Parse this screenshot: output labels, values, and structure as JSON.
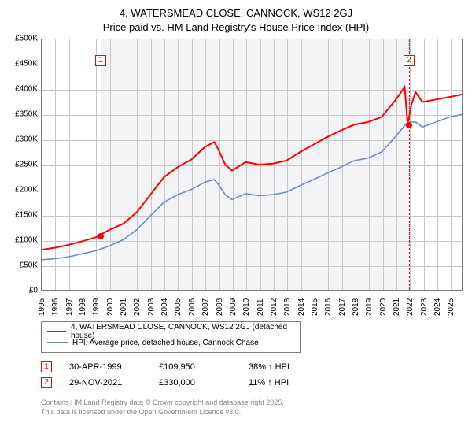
{
  "title_line1": "4, WATERSMEAD CLOSE, CANNOCK, WS12 2GJ",
  "title_line2": "Price paid vs. HM Land Registry's House Price Index (HPI)",
  "chart": {
    "type": "line",
    "background_color": "#ffffff",
    "band_color": "#f3f3f6",
    "border_color": "#7f7f7f",
    "grid_color": "#c8c8c8",
    "x_years": [
      1995,
      1996,
      1997,
      1998,
      1999,
      2000,
      2001,
      2002,
      2003,
      2004,
      2005,
      2006,
      2007,
      2008,
      2009,
      2010,
      2011,
      2012,
      2013,
      2014,
      2015,
      2016,
      2017,
      2018,
      2019,
      2020,
      2021,
      2022,
      2023,
      2024,
      2025
    ],
    "x_domain": [
      1995,
      2025.9
    ],
    "y_ticks": [
      0,
      50000,
      100000,
      150000,
      200000,
      250000,
      300000,
      350000,
      400000,
      450000,
      500000
    ],
    "y_labels": [
      "£0",
      "£50K",
      "£100K",
      "£150K",
      "£200K",
      "£250K",
      "£300K",
      "£350K",
      "£400K",
      "£450K",
      "£500K"
    ],
    "ylim": [
      0,
      500000
    ],
    "band_ranges": [
      [
        1999.33,
        2021.92
      ]
    ],
    "vlines": [
      1999.33,
      2021.92
    ],
    "markers": [
      {
        "n": "1",
        "year": 1999.33,
        "price": 109950,
        "box_y": 20
      },
      {
        "n": "2",
        "year": 2021.92,
        "price": 330000,
        "box_y": 20
      }
    ],
    "series": [
      {
        "name": "series-price-paid",
        "color": "#ff0000",
        "width": 2,
        "label": "4, WATERSMEAD CLOSE, CANNOCK, WS12 2GJ (detached house)",
        "points": [
          [
            1995,
            80000
          ],
          [
            1996,
            84000
          ],
          [
            1997,
            90000
          ],
          [
            1998,
            97000
          ],
          [
            1999,
            105000
          ],
          [
            1999.33,
            109950
          ],
          [
            2000,
            120000
          ],
          [
            2001,
            132000
          ],
          [
            2002,
            155000
          ],
          [
            2003,
            190000
          ],
          [
            2004,
            225000
          ],
          [
            2005,
            245000
          ],
          [
            2006,
            260000
          ],
          [
            2007,
            285000
          ],
          [
            2007.7,
            295000
          ],
          [
            2008,
            280000
          ],
          [
            2008.5,
            250000
          ],
          [
            2009,
            238000
          ],
          [
            2010,
            255000
          ],
          [
            2011,
            250000
          ],
          [
            2012,
            252000
          ],
          [
            2013,
            258000
          ],
          [
            2014,
            275000
          ],
          [
            2015,
            290000
          ],
          [
            2016,
            305000
          ],
          [
            2017,
            318000
          ],
          [
            2018,
            330000
          ],
          [
            2019,
            335000
          ],
          [
            2020,
            345000
          ],
          [
            2021,
            378000
          ],
          [
            2021.7,
            405000
          ],
          [
            2021.92,
            330000
          ],
          [
            2022.2,
            370000
          ],
          [
            2022.5,
            395000
          ],
          [
            2023,
            375000
          ],
          [
            2024,
            380000
          ],
          [
            2025,
            385000
          ],
          [
            2025.9,
            390000
          ]
        ]
      },
      {
        "name": "series-hpi",
        "color": "#6e8fc3",
        "width": 1.6,
        "label": "HPI: Average price, detached house, Cannock Chase",
        "points": [
          [
            1995,
            60000
          ],
          [
            1996,
            62000
          ],
          [
            1997,
            66000
          ],
          [
            1998,
            72000
          ],
          [
            1999,
            78000
          ],
          [
            2000,
            88000
          ],
          [
            2001,
            100000
          ],
          [
            2002,
            120000
          ],
          [
            2003,
            148000
          ],
          [
            2004,
            175000
          ],
          [
            2005,
            190000
          ],
          [
            2006,
            200000
          ],
          [
            2007,
            215000
          ],
          [
            2007.7,
            220000
          ],
          [
            2008,
            210000
          ],
          [
            2008.5,
            190000
          ],
          [
            2009,
            180000
          ],
          [
            2010,
            192000
          ],
          [
            2011,
            188000
          ],
          [
            2012,
            190000
          ],
          [
            2013,
            195000
          ],
          [
            2014,
            208000
          ],
          [
            2015,
            220000
          ],
          [
            2016,
            233000
          ],
          [
            2017,
            245000
          ],
          [
            2018,
            258000
          ],
          [
            2019,
            263000
          ],
          [
            2020,
            275000
          ],
          [
            2021,
            305000
          ],
          [
            2021.92,
            335000
          ],
          [
            2022.5,
            335000
          ],
          [
            2023,
            325000
          ],
          [
            2024,
            335000
          ],
          [
            2025,
            345000
          ],
          [
            2025.9,
            350000
          ]
        ]
      }
    ],
    "sales": [
      {
        "n": "1",
        "date": "30-APR-1999",
        "price": "£109,950",
        "vs": "38% ↑ HPI"
      },
      {
        "n": "2",
        "date": "29-NOV-2021",
        "price": "£330,000",
        "vs": "11% ↑ HPI"
      }
    ]
  },
  "footer_line1": "Contains HM Land Registry data © Crown copyright and database right 2025.",
  "footer_line2": "This data is licensed under the Open Government Licence v3.0."
}
